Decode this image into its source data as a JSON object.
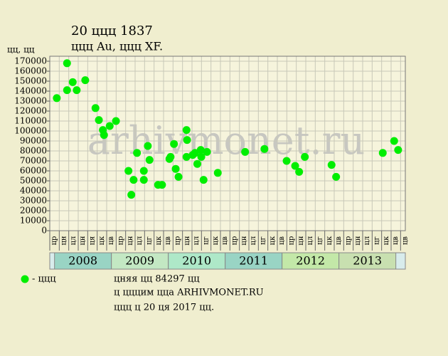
{
  "chart_data": {
    "type": "scatter",
    "title": "20 ццц 1837",
    "subtitle": "ццц  Au, ццц  XF.",
    "y_label": "цц, цц",
    "watermark": "arhivmonet.ru",
    "legend_label": "- ццц",
    "notes": [
      "цняя цц 84297 цц",
      "ц цццим ццa ARHIVMONET.RU",
      "ццц ц 20 ця 2017 цц."
    ],
    "color": "#00ee00",
    "grid": true,
    "xlim": [
      2007.9167,
      2014.1667
    ],
    "ylim": [
      0,
      175000
    ],
    "yticks": [
      0,
      10000,
      20000,
      30000,
      40000,
      50000,
      60000,
      70000,
      80000,
      90000,
      100000,
      110000,
      120000,
      130000,
      140000,
      150000,
      160000,
      170000
    ],
    "xticks": [
      {
        "value": 2007.9167,
        "label": "цр"
      },
      {
        "value": 2008.0833,
        "label": "цн"
      },
      {
        "value": 2008.25,
        "label": "цл"
      },
      {
        "value": 2008.4167,
        "label": "цн"
      },
      {
        "value": 2008.5833,
        "label": "ця"
      },
      {
        "value": 2008.75,
        "label": "цк"
      },
      {
        "value": 2008.9167,
        "label": "цв"
      },
      {
        "value": 2009.0833,
        "label": "цр"
      },
      {
        "value": 2009.25,
        "label": "цн"
      },
      {
        "value": 2009.4167,
        "label": "цл"
      },
      {
        "value": 2009.5833,
        "label": "цг"
      },
      {
        "value": 2009.75,
        "label": "цк"
      },
      {
        "value": 2009.9167,
        "label": "цв"
      },
      {
        "value": 2010.0833,
        "label": "цр"
      },
      {
        "value": 2010.25,
        "label": "цн"
      },
      {
        "value": 2010.4167,
        "label": "цл"
      },
      {
        "value": 2010.5833,
        "label": "цг"
      },
      {
        "value": 2010.75,
        "label": "цк"
      },
      {
        "value": 2010.9167,
        "label": "цв"
      },
      {
        "value": 2011.0833,
        "label": "цр"
      },
      {
        "value": 2011.25,
        "label": "цн"
      },
      {
        "value": 2011.4167,
        "label": "цл"
      },
      {
        "value": 2011.5833,
        "label": "цг"
      },
      {
        "value": 2011.75,
        "label": "цк"
      },
      {
        "value": 2011.9167,
        "label": "цв"
      },
      {
        "value": 2012.0833,
        "label": "цр"
      },
      {
        "value": 2012.25,
        "label": "цн"
      },
      {
        "value": 2012.4167,
        "label": "цл"
      },
      {
        "value": 2012.5833,
        "label": "цг"
      },
      {
        "value": 2012.75,
        "label": "цк"
      },
      {
        "value": 2012.9167,
        "label": "цв"
      },
      {
        "value": 2013.0833,
        "label": "цр"
      },
      {
        "value": 2013.25,
        "label": "цн"
      },
      {
        "value": 2013.4167,
        "label": "цл"
      },
      {
        "value": 2013.5833,
        "label": "цг"
      },
      {
        "value": 2013.75,
        "label": "цк"
      },
      {
        "value": 2013.9167,
        "label": "цв"
      },
      {
        "value": 2014.0833,
        "label": "цв"
      }
    ],
    "years": [
      {
        "value": 2008,
        "label": "2008",
        "color": "#99d4c4"
      },
      {
        "value": 2009,
        "label": "2009",
        "color": "#c3e8c3"
      },
      {
        "value": 2010,
        "label": "2010",
        "color": "#aee8c8"
      },
      {
        "value": 2011,
        "label": "2011",
        "color": "#99d4c4"
      },
      {
        "value": 2012,
        "label": "2012",
        "color": "#c3e8a8"
      },
      {
        "value": 2013,
        "label": "2013",
        "color": "#c8e0b0"
      }
    ],
    "x": [
      2008.04,
      2008.22,
      2008.22,
      2008.32,
      2008.39,
      2008.54,
      2008.72,
      2008.78,
      2008.85,
      2008.87,
      2008.97,
      2009.08,
      2009.3,
      2009.35,
      2009.39,
      2009.45,
      2009.57,
      2009.57,
      2009.64,
      2009.67,
      2009.82,
      2009.89,
      2010.02,
      2010.04,
      2010.1,
      2010.13,
      2010.18,
      2010.32,
      2010.33,
      2010.32,
      2010.43,
      2010.47,
      2010.51,
      2010.57,
      2010.58,
      2010.62,
      2010.68,
      2010.87,
      2011.35,
      2011.69,
      2012.08,
      2012.23,
      2012.3,
      2012.4,
      2012.87,
      2012.95,
      2013.77,
      2013.97,
      2014.04
    ],
    "values": [
      133000,
      168000,
      141000,
      149000,
      141000,
      151000,
      123000,
      111000,
      101000,
      96000,
      105000,
      110000,
      60000,
      36000,
      51000,
      78000,
      60000,
      51000,
      85000,
      71000,
      46000,
      46000,
      72000,
      74000,
      87000,
      62000,
      54000,
      101000,
      91000,
      74000,
      76000,
      78000,
      67000,
      81000,
      74000,
      51000,
      79000,
      58000,
      79000,
      82000,
      70000,
      65000,
      59000,
      74000,
      66000,
      54000,
      78000,
      90000,
      81000
    ]
  }
}
